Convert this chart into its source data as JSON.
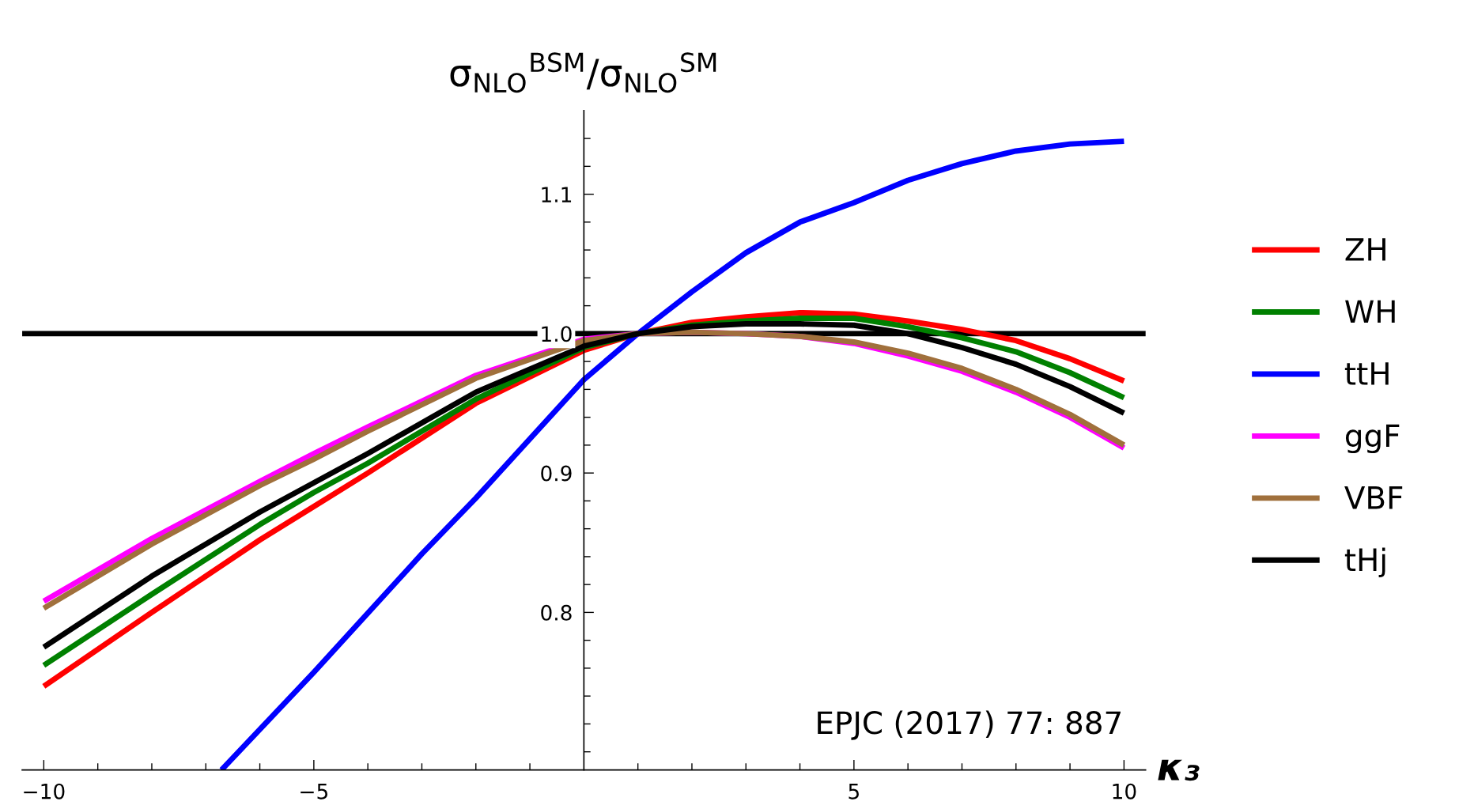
{
  "chart_data": {
    "type": "line",
    "title": "σ$_{NLO}$$^{BSM}$/σ$_{NLO}$$^{SM}$",
    "xlabel": "κ₃",
    "annotations": [
      "EPJC (2017) 77: 887"
    ],
    "x": [
      -10,
      -8,
      -6,
      -5,
      -4,
      -2,
      0,
      1,
      2,
      3,
      4,
      5,
      6,
      7,
      8,
      9,
      10
    ],
    "series": [
      {
        "name": "ZH",
        "color": "#ff0000",
        "values": [
          0.747,
          0.8,
          0.852,
          0.876,
          0.9,
          0.95,
          0.988,
          1.0,
          1.008,
          1.012,
          1.015,
          1.014,
          1.009,
          1.003,
          0.995,
          0.982,
          0.966
        ]
      },
      {
        "name": "WH",
        "color": "#008000",
        "values": [
          0.762,
          0.813,
          0.863,
          0.886,
          0.907,
          0.953,
          0.99,
          1.0,
          1.006,
          1.009,
          1.011,
          1.011,
          1.005,
          0.997,
          0.987,
          0.972,
          0.954
        ]
      },
      {
        "name": "ttH",
        "color": "#0000ff",
        "x": [
          -6.71,
          -5,
          -3,
          -2,
          0,
          1,
          2,
          3,
          4,
          5,
          6,
          7,
          8,
          9,
          10
        ],
        "values": [
          0.687,
          0.757,
          0.842,
          0.882,
          0.967,
          1.0,
          1.03,
          1.058,
          1.08,
          1.094,
          1.11,
          1.122,
          1.131,
          1.136,
          1.138
        ]
      },
      {
        "name": "ggF",
        "color": "#ff00ff",
        "values": [
          0.808,
          0.853,
          0.894,
          0.914,
          0.933,
          0.97,
          0.996,
          1.0,
          1.001,
          1.0,
          0.998,
          0.993,
          0.984,
          0.973,
          0.958,
          0.94,
          0.918
        ]
      },
      {
        "name": "VBF",
        "color": "#a0703c",
        "values": [
          0.803,
          0.849,
          0.891,
          0.91,
          0.93,
          0.968,
          0.995,
          1.0,
          1.001,
          1.0,
          0.998,
          0.994,
          0.986,
          0.975,
          0.96,
          0.942,
          0.92
        ]
      },
      {
        "name": "tHj",
        "color": "#000000",
        "values": [
          0.775,
          0.826,
          0.872,
          0.893,
          0.914,
          0.958,
          0.991,
          1.0,
          1.005,
          1.007,
          1.007,
          1.006,
          1.0,
          0.99,
          0.978,
          0.962,
          0.943
        ]
      }
    ],
    "ref_lines": [
      {
        "axis": "y",
        "value": 1.0,
        "color": "#000000"
      }
    ],
    "xlim": [
      -10.4,
      10.4
    ],
    "ylim": [
      0.687,
      1.16
    ],
    "xticks": [
      {
        "value": -10,
        "label": "−10"
      },
      {
        "value": -9,
        "label": null
      },
      {
        "value": -8,
        "label": null
      },
      {
        "value": -7,
        "label": null
      },
      {
        "value": -6,
        "label": null
      },
      {
        "value": -5,
        "label": "−5"
      },
      {
        "value": -4,
        "label": null
      },
      {
        "value": -3,
        "label": null
      },
      {
        "value": -2,
        "label": null
      },
      {
        "value": -1,
        "label": null
      },
      {
        "value": 1,
        "label": null
      },
      {
        "value": 2,
        "label": null
      },
      {
        "value": 3,
        "label": null
      },
      {
        "value": 4,
        "label": null
      },
      5,
      {
        "value": 6,
        "label": null
      },
      {
        "value": 7,
        "label": null
      },
      {
        "value": 8,
        "label": null
      },
      {
        "value": 9,
        "label": null
      },
      10
    ],
    "yticks": [
      {
        "value": 0.7,
        "label": null
      },
      {
        "value": 0.72,
        "label": null
      },
      {
        "value": 0.74,
        "label": null
      },
      {
        "value": 0.76,
        "label": null
      },
      {
        "value": 0.78,
        "label": null
      },
      0.8,
      {
        "value": 0.82,
        "label": null
      },
      {
        "value": 0.84,
        "label": null
      },
      {
        "value": 0.86,
        "label": null
      },
      {
        "value": 0.88,
        "label": null
      },
      0.9,
      {
        "value": 0.92,
        "label": null
      },
      {
        "value": 0.94,
        "label": null
      },
      {
        "value": 0.96,
        "label": null
      },
      {
        "value": 0.98,
        "label": null
      },
      {
        "value": 1.0,
        "label": "1.0"
      },
      {
        "value": 1.02,
        "label": null
      },
      {
        "value": 1.04,
        "label": null
      },
      {
        "value": 1.06,
        "label": null
      },
      {
        "value": 1.08,
        "label": null
      },
      1.1,
      {
        "value": 1.12,
        "label": null
      },
      {
        "value": 1.14,
        "label": null
      }
    ],
    "grid": false,
    "legend": "right",
    "marker": "none",
    "line_style": "solid"
  }
}
